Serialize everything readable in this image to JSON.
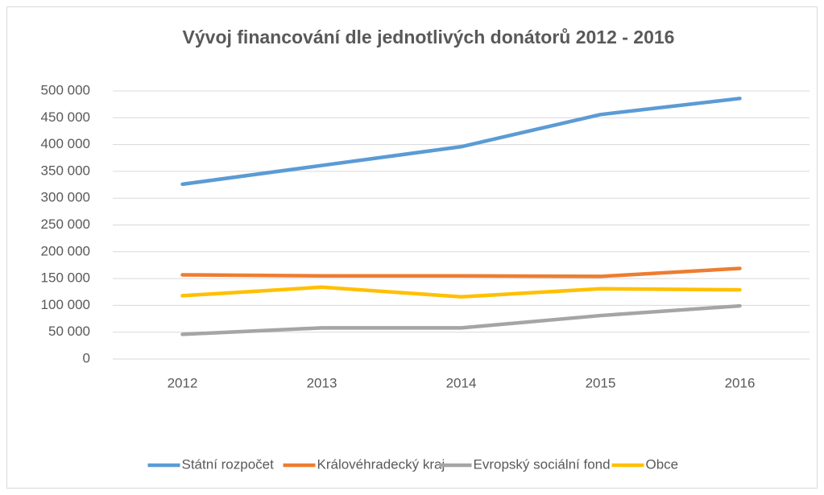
{
  "chart_data": {
    "type": "line",
    "title": "Vývoj financování dle jednotlivých donátorů 2012 - 2016",
    "categories": [
      "2012",
      "2013",
      "2014",
      "2015",
      "2016"
    ],
    "series": [
      {
        "name": "Státní rozpočet",
        "color": "#5b9bd5",
        "values": [
          326000,
          361000,
          396000,
          456000,
          486000
        ]
      },
      {
        "name": "Královéhradecký kraj",
        "color": "#ed7d31",
        "values": [
          157000,
          155000,
          155000,
          154000,
          169000
        ]
      },
      {
        "name": "Evropský sociální fond",
        "color": "#a5a5a5",
        "values": [
          46000,
          58000,
          58000,
          81000,
          99000
        ]
      },
      {
        "name": "Obce",
        "color": "#ffc000",
        "values": [
          118000,
          134000,
          116000,
          131000,
          129000
        ]
      }
    ],
    "ylim": [
      0,
      500000
    ],
    "yticks": [
      0,
      {
        "value": 50000,
        "label": "50 000"
      },
      {
        "value": 100000,
        "label": "100 000"
      },
      {
        "value": 150000,
        "label": "150 000"
      },
      {
        "value": 200000,
        "label": "200 000"
      },
      {
        "value": 250000,
        "label": "250 000"
      },
      {
        "value": 300000,
        "label": "300 000"
      },
      {
        "value": 350000,
        "label": "350 000"
      },
      {
        "value": 400000,
        "label": "400 000"
      },
      {
        "value": 450000,
        "label": "450 000"
      },
      {
        "value": 500000,
        "label": "500 000"
      }
    ],
    "grid": true,
    "legend": "bottom"
  }
}
